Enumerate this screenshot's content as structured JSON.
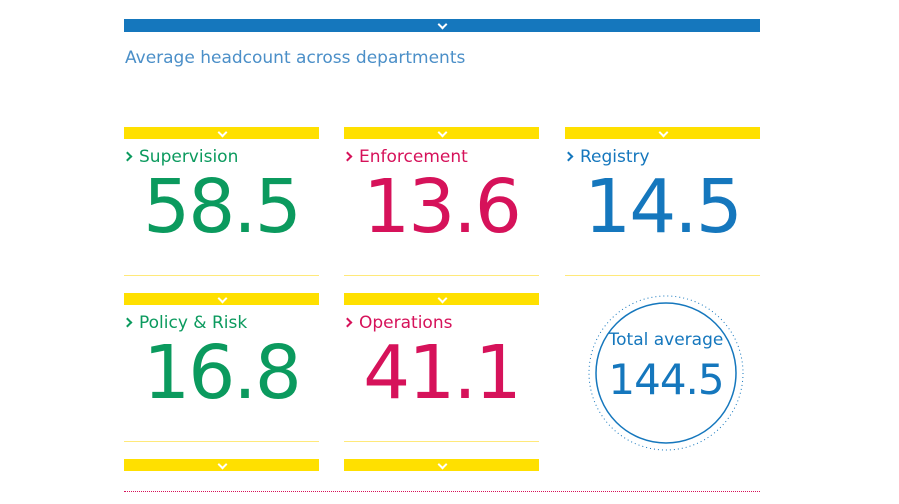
{
  "title": "Average headcount across departments",
  "cards": [
    {
      "label": "Supervision",
      "value": "58.5",
      "color": "#0b9a5e"
    },
    {
      "label": "Enforcement",
      "value": "13.6",
      "color": "#d6125a"
    },
    {
      "label": "Registry",
      "value": "14.5",
      "color": "#1577bd"
    },
    {
      "label": "Policy & Risk",
      "value": "16.8",
      "color": "#0b9a5e"
    },
    {
      "label": "Operations",
      "value": "41.1",
      "color": "#d6125a"
    }
  ],
  "total": {
    "label": "Total average",
    "value": "144.5",
    "color": "#1577bd"
  }
}
